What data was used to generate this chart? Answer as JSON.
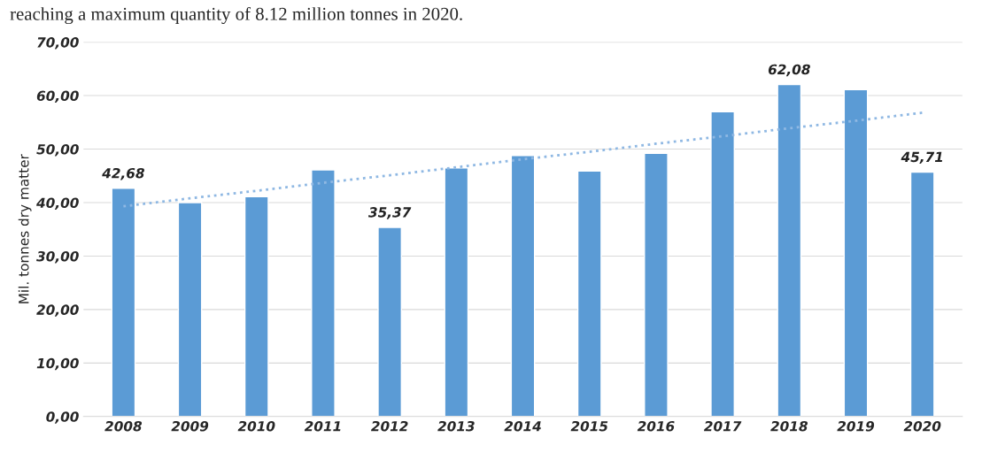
{
  "chart_data": {
    "type": "bar",
    "ylabel": "Mil. tonnes dry matter",
    "annotations": [
      "reaching a maximum quantity of 8.12 million tonnes in 2020."
    ],
    "categories": [
      "2008",
      "2009",
      "2010",
      "2011",
      "2012",
      "2013",
      "2014",
      "2015",
      "2016",
      "2017",
      "2018",
      "2019",
      "2020"
    ],
    "series": [
      {
        "color": "#5b9bd5",
        "values": [
          42.68,
          40.0,
          41.1,
          46.1,
          35.37,
          46.5,
          48.8,
          45.9,
          49.2,
          57.0,
          62.08,
          61.1,
          45.71
        ],
        "value_labels": [
          "42,68",
          null,
          null,
          null,
          "35,37",
          null,
          null,
          null,
          null,
          null,
          "62,08",
          null,
          "45,71"
        ]
      },
      {
        "type": "line",
        "color": "#8fb8e3",
        "line_style": "dotted",
        "values": [
          39.3,
          40.8,
          42.2,
          43.7,
          45.1,
          46.6,
          48.1,
          49.5,
          51.0,
          52.4,
          53.9,
          55.3,
          56.8
        ]
      }
    ],
    "ylim": [
      0,
      70
    ],
    "yticks": [
      {
        "value": 0,
        "label": "0,00"
      },
      {
        "value": 10,
        "label": "10,00"
      },
      {
        "value": 20,
        "label": "20,00"
      },
      {
        "value": 30,
        "label": "30,00"
      },
      {
        "value": 40,
        "label": "40,00"
      },
      {
        "value": 50,
        "label": "50,00"
      },
      {
        "value": 60,
        "label": "60,00"
      },
      {
        "value": 70,
        "label": "70,00"
      }
    ],
    "grid": "y"
  }
}
